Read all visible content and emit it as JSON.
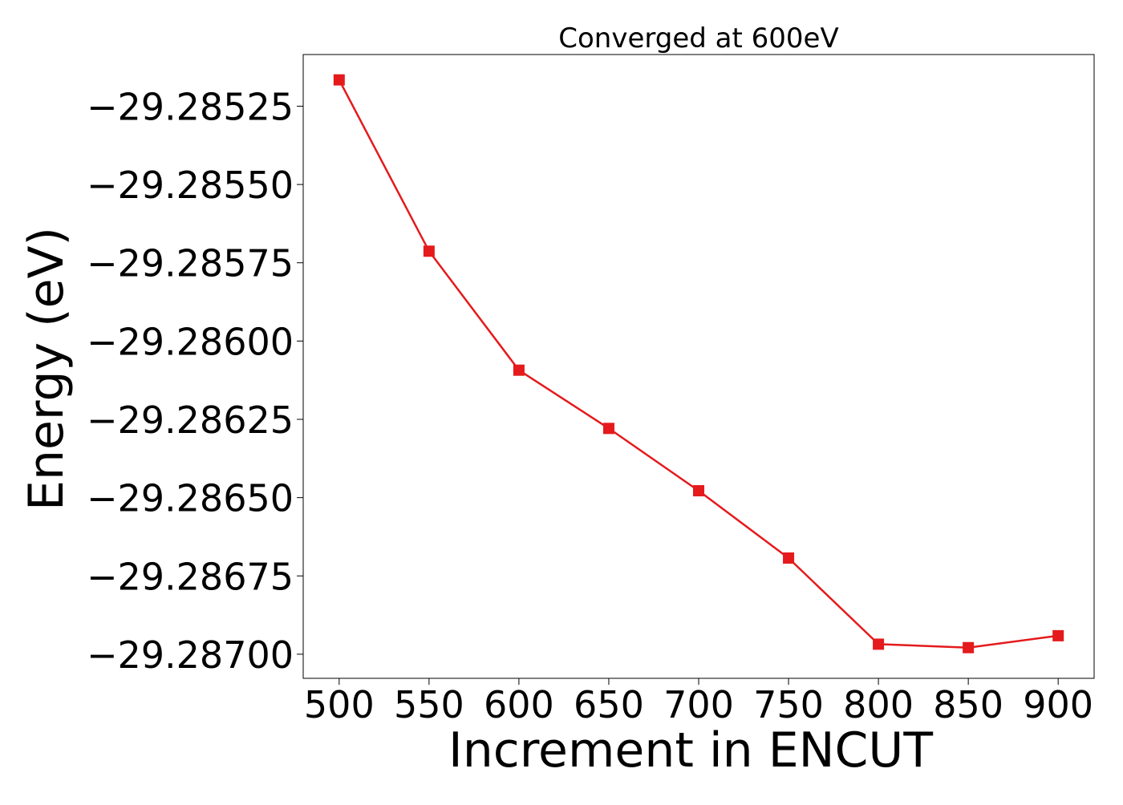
{
  "chart_data": {
    "type": "line",
    "title": "Converged at 600eV",
    "xlabel": "Increment in ENCUT",
    "ylabel": "Energy (eV)",
    "x": [
      500,
      550,
      600,
      650,
      700,
      750,
      800,
      850,
      900
    ],
    "xticks": [
      "500",
      "550",
      "600",
      "650",
      "700",
      "750",
      "800",
      "850",
      "900"
    ],
    "yticks": [
      -29.28525,
      -29.2855,
      -29.28575,
      -29.286,
      -29.28625,
      -29.2865,
      -29.28675,
      -29.287
    ],
    "ytick_labels": [
      "−29.28525",
      "−29.28550",
      "−29.28575",
      "−29.28600",
      "−29.28625",
      "−29.28650",
      "−29.28675",
      "−29.28700"
    ],
    "xlim": [
      480,
      920
    ],
    "ylim": [
      -29.287077,
      -29.285085
    ],
    "grid": false,
    "legend": "none",
    "series": [
      {
        "color": "#e41a1c",
        "marker": "square",
        "values": [
          -29.285166,
          -29.285713,
          -29.286093,
          -29.286279,
          -29.286478,
          -29.286693,
          -29.286968,
          -29.286979,
          -29.286941
        ]
      }
    ]
  }
}
